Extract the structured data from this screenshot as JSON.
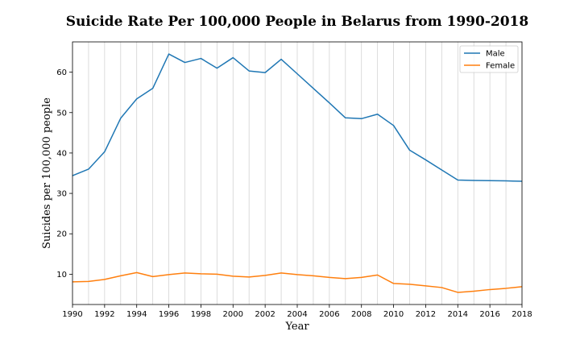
{
  "chart_data": {
    "type": "line",
    "title": "Suicide Rate Per 100,000 People in Belarus from 1990-2018",
    "xlabel": "Year",
    "ylabel": "Suicides per 100,000 people",
    "xlim": [
      1990,
      2018
    ],
    "ylim": [
      2.5,
      67.5
    ],
    "xticks": [
      1990,
      1992,
      1994,
      1996,
      1998,
      2000,
      2002,
      2004,
      2006,
      2008,
      2010,
      2012,
      2014,
      2016,
      2018
    ],
    "yticks": [
      10,
      20,
      30,
      40,
      50,
      60
    ],
    "grid": "vertical",
    "legend_position": "top-right",
    "x": [
      1990,
      1991,
      1992,
      1993,
      1994,
      1995,
      1996,
      1997,
      1998,
      1999,
      2000,
      2001,
      2002,
      2003,
      2004,
      2005,
      2006,
      2007,
      2008,
      2009,
      2010,
      2011,
      2012,
      2013,
      2014,
      2015,
      2016,
      2017,
      2018
    ],
    "series": [
      {
        "name": "Male",
        "color": "#1f77b4",
        "values": [
          34.4,
          36.0,
          40.3,
          48.6,
          53.4,
          56.0,
          64.5,
          62.4,
          63.4,
          61.0,
          63.6,
          60.3,
          59.9,
          63.2,
          59.6,
          56.0,
          52.4,
          48.7,
          48.5,
          49.6,
          46.8,
          40.7,
          38.3,
          35.8,
          33.3,
          33.2,
          33.15,
          33.1,
          33.0
        ]
      },
      {
        "name": "Female",
        "color": "#ff7f0e",
        "values": [
          8.1,
          8.2,
          8.7,
          9.6,
          10.4,
          9.4,
          9.9,
          10.3,
          10.1,
          10.0,
          9.5,
          9.3,
          9.7,
          10.3,
          9.9,
          9.6,
          9.2,
          8.9,
          9.2,
          9.8,
          7.7,
          7.5,
          7.1,
          6.7,
          5.5,
          5.8,
          6.2,
          6.5,
          6.9
        ]
      }
    ]
  }
}
